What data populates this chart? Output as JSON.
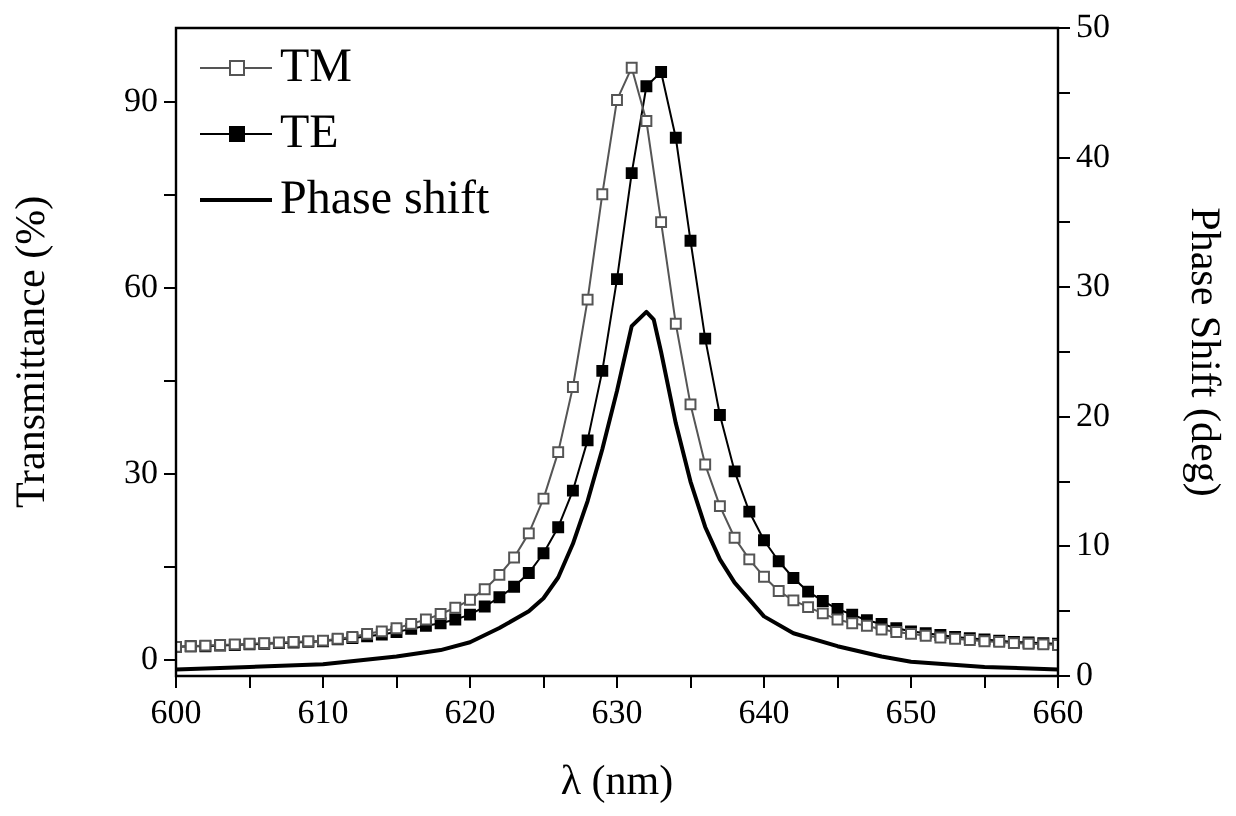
{
  "chart_data": {
    "type": "line",
    "xlabel": "λ (nm)",
    "ylabel": "Transmittance (%)",
    "y2label": "Phase Shift (deg)",
    "xlim": [
      600,
      660
    ],
    "xticks": [
      600,
      {
        "value": 605,
        "label": null
      },
      610,
      {
        "value": 615,
        "label": null
      },
      620,
      {
        "value": 625,
        "label": null
      },
      630,
      {
        "value": 635,
        "label": null
      },
      640,
      {
        "value": 645,
        "label": null
      },
      650,
      {
        "value": 655,
        "label": null
      },
      660
    ],
    "ylim": [
      -2.5,
      102
    ],
    "yticks": [
      0,
      {
        "value": 15,
        "label": null
      },
      30,
      {
        "value": 45,
        "label": null
      },
      60,
      {
        "value": 75,
        "label": null
      },
      90
    ],
    "y2lim": [
      0,
      50
    ],
    "y2ticks": [
      0,
      {
        "value": 5,
        "label": null
      },
      10,
      {
        "value": 15,
        "label": null
      },
      20,
      {
        "value": 25,
        "label": null
      },
      30,
      {
        "value": 35,
        "label": null
      },
      40,
      {
        "value": 45,
        "label": null
      },
      50
    ],
    "grid": false,
    "legend": "top left",
    "series": [
      {
        "name": "TM",
        "color": "#555555",
        "marker": "square",
        "x": [
          600,
          601,
          602,
          603,
          604,
          605,
          606,
          607,
          608,
          609,
          610,
          611,
          612,
          613,
          614,
          615,
          616,
          617,
          618,
          619,
          620,
          621,
          622,
          623,
          624,
          625,
          626,
          627,
          628,
          629,
          630,
          631,
          632,
          633,
          634,
          635,
          636,
          637,
          638,
          639,
          640,
          641,
          642,
          643,
          644,
          645,
          646,
          647,
          648,
          649,
          650,
          651,
          652,
          653,
          654,
          655,
          656,
          657,
          658,
          659,
          660
        ],
        "values": [
          2.2,
          2.3,
          2.4,
          2.5,
          2.6,
          2.7,
          2.8,
          2.9,
          3.0,
          3.1,
          3.2,
          3.5,
          3.8,
          4.3,
          4.7,
          5.2,
          5.9,
          6.6,
          7.5,
          8.5,
          9.8,
          11.5,
          13.8,
          16.6,
          20.5,
          26.1,
          33.6,
          44.1,
          58.2,
          75.2,
          90.4,
          95.6,
          87.0,
          70.7,
          54.3,
          41.3,
          31.6,
          24.9,
          19.8,
          16.3,
          13.5,
          11.2,
          9.7,
          8.6,
          7.6,
          6.6,
          6.0,
          5.6,
          5.0,
          4.6,
          4.3,
          4.0,
          3.7,
          3.5,
          3.3,
          3.1,
          3.0,
          2.8,
          2.7,
          2.6,
          2.5
        ]
      },
      {
        "name": "TE",
        "color": "#000000",
        "marker": "square",
        "x": [
          600,
          601,
          602,
          603,
          604,
          605,
          606,
          607,
          608,
          609,
          610,
          611,
          612,
          613,
          614,
          615,
          616,
          617,
          618,
          619,
          620,
          621,
          622,
          623,
          624,
          625,
          626,
          627,
          628,
          629,
          630,
          631,
          632,
          633,
          634,
          635,
          636,
          637,
          638,
          639,
          640,
          641,
          642,
          643,
          644,
          645,
          646,
          647,
          648,
          649,
          650,
          651,
          652,
          653,
          654,
          655,
          656,
          657,
          658,
          659,
          660
        ],
        "values": [
          2.2,
          2.3,
          2.3,
          2.4,
          2.5,
          2.6,
          2.7,
          2.8,
          2.9,
          3.0,
          3.1,
          3.4,
          3.6,
          3.9,
          4.2,
          4.6,
          5.1,
          5.6,
          6.0,
          6.6,
          7.4,
          8.7,
          10.2,
          11.9,
          14.1,
          17.3,
          21.5,
          27.4,
          35.5,
          46.7,
          61.5,
          78.6,
          92.6,
          94.9,
          84.3,
          67.7,
          51.9,
          39.6,
          30.5,
          24.0,
          19.4,
          16.0,
          13.3,
          11.1,
          9.6,
          8.3,
          7.4,
          6.5,
          5.9,
          5.2,
          4.7,
          4.4,
          4.1,
          3.8,
          3.6,
          3.4,
          3.2,
          3.0,
          2.9,
          2.8,
          2.7
        ]
      },
      {
        "name": "Phase shift",
        "color": "#000000",
        "marker": "none",
        "axis": "y2",
        "x": [
          600,
          605,
          610,
          615,
          618,
          620,
          622,
          624,
          625,
          626,
          627,
          628,
          629,
          630,
          631,
          632,
          632.5,
          633,
          634,
          635,
          636,
          637,
          638,
          640,
          642,
          645,
          648,
          650,
          655,
          660
        ],
        "values": [
          0.5,
          0.7,
          0.9,
          1.5,
          2.0,
          2.6,
          3.7,
          5.0,
          6.0,
          7.6,
          10.2,
          13.5,
          17.5,
          22,
          27,
          28.1,
          27.5,
          25,
          19.5,
          15,
          11.5,
          9,
          7.2,
          4.6,
          3.3,
          2.3,
          1.5,
          1.1,
          0.7,
          0.5
        ]
      }
    ]
  }
}
